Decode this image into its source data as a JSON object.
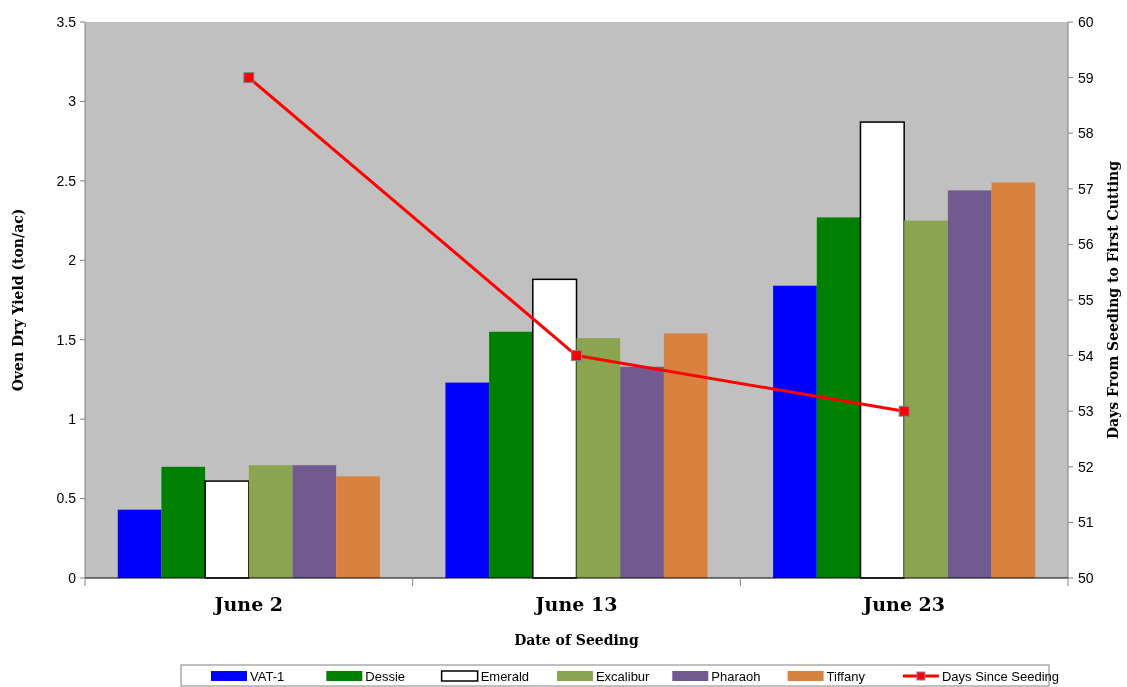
{
  "chart_data": {
    "type": "bar",
    "xlabel": "Date of Seeding",
    "ylabel": "Oven Dry Yield (ton/ac)",
    "y2label": "Days From Seeding to First Cutting",
    "categories": [
      "June 2",
      "June 13",
      "June 23"
    ],
    "series": [
      {
        "name": "VAT-1",
        "color": "#0000ff",
        "values": [
          0.43,
          1.23,
          1.84
        ]
      },
      {
        "name": "Dessie",
        "color": "#008000",
        "values": [
          0.7,
          1.55,
          2.27
        ]
      },
      {
        "name": "Emerald",
        "color": "#ffffff",
        "values": [
          0.61,
          1.88,
          2.87
        ]
      },
      {
        "name": "Excalibur",
        "color": "#8ba44f",
        "values": [
          0.71,
          1.51,
          2.25
        ]
      },
      {
        "name": "Pharaoh",
        "color": "#705a8f",
        "values": [
          0.71,
          1.33,
          2.44
        ]
      },
      {
        "name": "Tiffany",
        "color": "#d9823f",
        "values": [
          0.64,
          1.54,
          2.49
        ]
      },
      {
        "name": "Days Since Seeding",
        "type": "line",
        "axis": "y2",
        "color": "#ff0000",
        "marker": "square",
        "values": [
          59,
          54,
          53
        ]
      }
    ],
    "ylim": [
      0,
      3.5
    ],
    "yticks": [
      0,
      0.5,
      1,
      1.5,
      2,
      2.5,
      3,
      3.5
    ],
    "y2lim": [
      50,
      60
    ],
    "y2ticks": [
      50,
      51,
      52,
      53,
      54,
      55,
      56,
      57,
      58,
      59,
      60
    ],
    "grid": false,
    "legend": "bottom"
  }
}
